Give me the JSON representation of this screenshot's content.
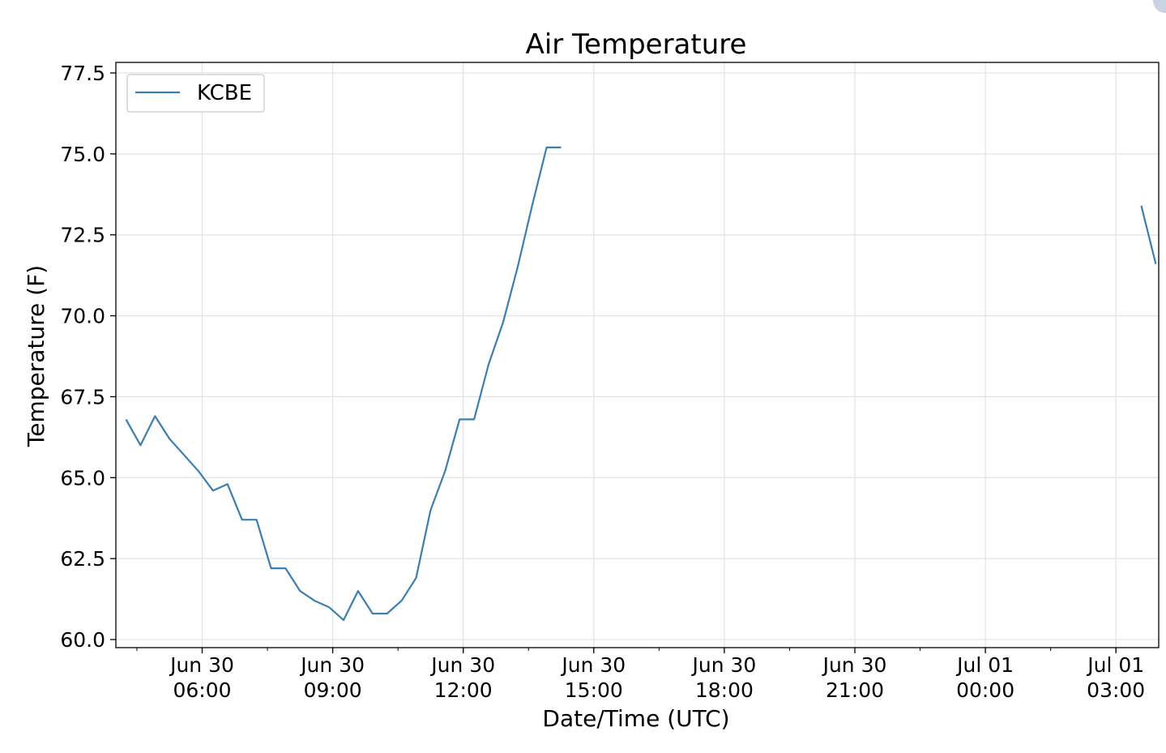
{
  "chart_data": {
    "type": "line",
    "title": "Air Temperature",
    "xlabel": "Date/Time (UTC)",
    "ylabel": "Temperature (F)",
    "ylim": [
      60.0,
      77.5
    ],
    "xlim": [
      "2018-06-30T04:01",
      "2018-07-01T03:59"
    ],
    "grid": true,
    "legend": {
      "position": "top-left",
      "entries": [
        "KCBE"
      ]
    },
    "color": "#3a7fb0",
    "y_ticks": [
      "60.0",
      "62.5",
      "65.0",
      "67.5",
      "70.0",
      "72.5",
      "75.0",
      "77.5"
    ],
    "x_ticks": [
      {
        "t": "2018-06-30T06:00",
        "line1": "Jun 30",
        "line2": "06:00"
      },
      {
        "t": "2018-06-30T09:00",
        "line1": "Jun 30",
        "line2": "09:00"
      },
      {
        "t": "2018-06-30T12:00",
        "line1": "Jun 30",
        "line2": "12:00"
      },
      {
        "t": "2018-06-30T15:00",
        "line1": "Jun 30",
        "line2": "15:00"
      },
      {
        "t": "2018-06-30T18:00",
        "line1": "Jun 30",
        "line2": "18:00"
      },
      {
        "t": "2018-06-30T21:00",
        "line1": "Jun 30",
        "line2": "21:00"
      },
      {
        "t": "2018-07-01T00:00",
        "line1": "Jul 01",
        "line2": "00:00"
      },
      {
        "t": "2018-07-01T03:00",
        "line1": "Jul 01",
        "line2": "03:00"
      }
    ],
    "series": [
      {
        "name": "KCBE",
        "segments": [
          [
            [
              "2018-06-30T04:15",
              66.8
            ],
            [
              "2018-06-30T04:35",
              66.0
            ],
            [
              "2018-06-30T04:55",
              66.9
            ],
            [
              "2018-06-30T05:15",
              66.2
            ],
            [
              "2018-06-30T05:35",
              65.7
            ],
            [
              "2018-06-30T05:55",
              65.2
            ],
            [
              "2018-06-30T06:15",
              64.6
            ],
            [
              "2018-06-30T06:35",
              64.8
            ],
            [
              "2018-06-30T06:55",
              63.7
            ],
            [
              "2018-06-30T07:15",
              63.7
            ],
            [
              "2018-06-30T07:35",
              62.2
            ],
            [
              "2018-06-30T07:55",
              62.2
            ],
            [
              "2018-06-30T08:15",
              61.5
            ],
            [
              "2018-06-30T08:35",
              61.2
            ],
            [
              "2018-06-30T08:55",
              61.0
            ],
            [
              "2018-06-30T09:15",
              60.6
            ],
            [
              "2018-06-30T09:35",
              61.5
            ],
            [
              "2018-06-30T09:55",
              60.8
            ],
            [
              "2018-06-30T10:15",
              60.8
            ],
            [
              "2018-06-30T10:35",
              61.2
            ],
            [
              "2018-06-30T10:55",
              61.9
            ],
            [
              "2018-06-30T11:15",
              64.0
            ],
            [
              "2018-06-30T11:35",
              65.2
            ],
            [
              "2018-06-30T11:55",
              66.8
            ],
            [
              "2018-06-30T12:15",
              66.8
            ],
            [
              "2018-06-30T12:35",
              68.5
            ],
            [
              "2018-06-30T12:55",
              69.8
            ],
            [
              "2018-06-30T13:15",
              71.5
            ],
            [
              "2018-06-30T13:35",
              73.4
            ],
            [
              "2018-06-30T13:55",
              75.2
            ],
            [
              "2018-06-30T14:15",
              75.2
            ]
          ],
          [
            [
              "2018-07-01T03:35",
              73.4
            ],
            [
              "2018-07-01T03:55",
              71.6
            ]
          ]
        ]
      }
    ]
  }
}
